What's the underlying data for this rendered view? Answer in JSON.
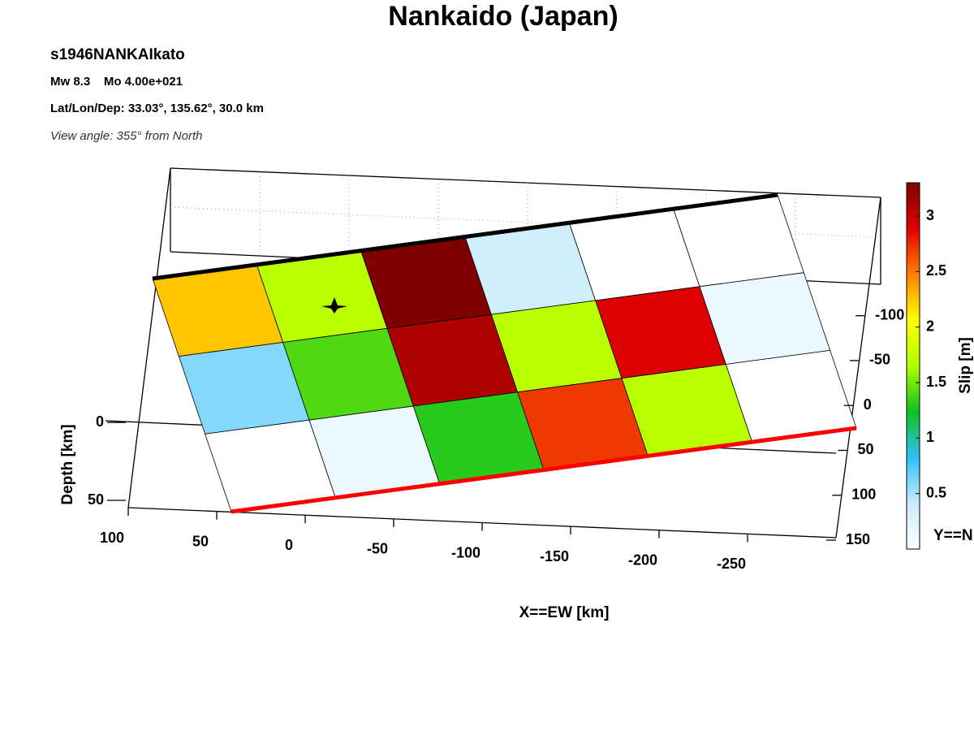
{
  "chart_data": {
    "type": "slip-map",
    "title": "Nankaido (Japan)",
    "event": "s1946NANKAIkato",
    "magnitude": "Mw 8.3    Mo 4.00e+021",
    "location": "Lat/Lon/Dep: 33.03°, 135.62°, 30.0 km",
    "view": "View angle: 355° from North",
    "xlabel": "X==EW [km]",
    "ylabel": "Y==N",
    "zlabel": "Depth [km]",
    "colorbar_label": "Slip [m]",
    "xlim": [
      100,
      -300
    ],
    "xticks": [
      100,
      50,
      0,
      -50,
      -100,
      -150,
      -200,
      -250
    ],
    "ylim": [
      -230,
      150
    ],
    "yticks": [
      -100,
      -50,
      0,
      50,
      100,
      150
    ],
    "zlim": [
      -160,
      50
    ],
    "zticks": [
      0,
      50
    ],
    "clim": [
      0,
      3.3
    ],
    "cticks": [
      0.5,
      1,
      1.5,
      2,
      2.5,
      3
    ],
    "colormap": [
      "#ffffff",
      "#c8ecfc",
      "#30bff8",
      "#10c020",
      "#b0ff00",
      "#ffff00",
      "#ff8000",
      "#e00000",
      "#800000"
    ],
    "slip": [
      [
        2.25,
        1.7,
        3.3,
        0.35,
        0,
        0
      ],
      [
        0.6,
        1.4,
        3.1,
        1.7,
        2.9,
        0.15
      ],
      [
        0,
        0.15,
        1.3,
        2.7,
        1.7,
        0
      ]
    ]
  }
}
